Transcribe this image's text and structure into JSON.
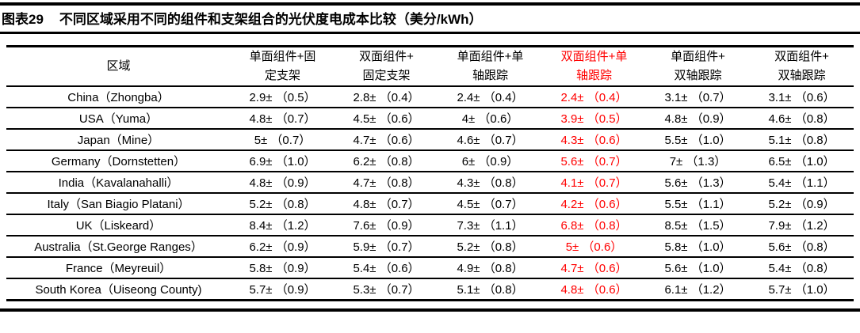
{
  "colors": {
    "highlight_red": "#ff0000",
    "text_black": "#000000",
    "background": "#ffffff"
  },
  "title": {
    "label": "图表29",
    "text": "不同区域采用不同的组件和支架组合的光伏度电成本比较（美分/kWh）"
  },
  "table": {
    "region_header": "区域",
    "columns": [
      {
        "line1": "单面组件+固",
        "line2": "定支架",
        "red": false
      },
      {
        "line1": "双面组件+",
        "line2": "固定支架",
        "red": false
      },
      {
        "line1": "单面组件+单",
        "line2": "轴跟踪",
        "red": false
      },
      {
        "line1": "双面组件+单",
        "line2": "轴跟踪",
        "red": true
      },
      {
        "line1": "单面组件+",
        "line2": "双轴跟踪",
        "red": false
      },
      {
        "line1": "双面组件+",
        "line2": "双轴跟踪",
        "red": false
      }
    ],
    "rows": [
      {
        "region": "China（Zhongba）",
        "values": [
          "2.9± （0.5）",
          "2.8± （0.4）",
          "2.4± （0.4）",
          "2.4± （0.4）",
          "3.1± （0.7）",
          "3.1± （0.6）"
        ]
      },
      {
        "region": "USA（Yuma）",
        "values": [
          "4.8± （0.7）",
          "4.5± （0.6）",
          "4± （0.6）",
          "3.9± （0.5）",
          "4.8± （0.9）",
          "4.6± （0.8）"
        ]
      },
      {
        "region": "Japan（Mine）",
        "values": [
          "5± （0.7）",
          "4.7± （0.6）",
          "4.6± （0.7）",
          "4.3± （0.6）",
          "5.5± （1.0）",
          "5.1± （0.8）"
        ]
      },
      {
        "region": "Germany（Dornstetten）",
        "values": [
          "6.9± （1.0）",
          "6.2± （0.8）",
          "6± （0.9）",
          "5.6± （0.7）",
          "7± （1.3）",
          "6.5± （1.0）"
        ]
      },
      {
        "region": "India（Kavalanahalli）",
        "values": [
          "4.8± （0.9）",
          "4.7± （0.8）",
          "4.3± （0.8）",
          "4.1± （0.7）",
          "5.6± （1.3）",
          "5.4± （1.1）"
        ]
      },
      {
        "region": "Italy（San Biagio Platani）",
        "values": [
          "5.2± （0.8）",
          "4.8± （0.7）",
          "4.5± （0.7）",
          "4.2± （0.6）",
          "5.5± （1.1）",
          "5.2± （0.9）"
        ]
      },
      {
        "region": "UK（Liskeard）",
        "values": [
          "8.4± （1.2）",
          "7.6± （0.9）",
          "7.3± （1.1）",
          "6.8± （0.8）",
          "8.5± （1.5）",
          "7.9± （1.2）"
        ]
      },
      {
        "region": "Australia（St.George Ranges）",
        "values": [
          "6.2± （0.9）",
          "5.9± （0.7）",
          "5.2± （0.8）",
          "5± （0.6）",
          "5.8± （1.0）",
          "5.6± （0.8）"
        ]
      },
      {
        "region": "France（Meyreuil）",
        "values": [
          "5.8± （0.9）",
          "5.4± （0.6）",
          "4.9± （0.8）",
          "4.7± （0.6）",
          "5.6± （1.0）",
          "5.4± （0.8）"
        ]
      },
      {
        "region": "South Korea（Uiseong County)",
        "values": [
          "5.7± （0.9）",
          "5.3± （0.7）",
          "5.1± （0.8）",
          "4.8± （0.6）",
          "6.1± （1.2）",
          "5.7± （1.0）"
        ]
      }
    ]
  }
}
